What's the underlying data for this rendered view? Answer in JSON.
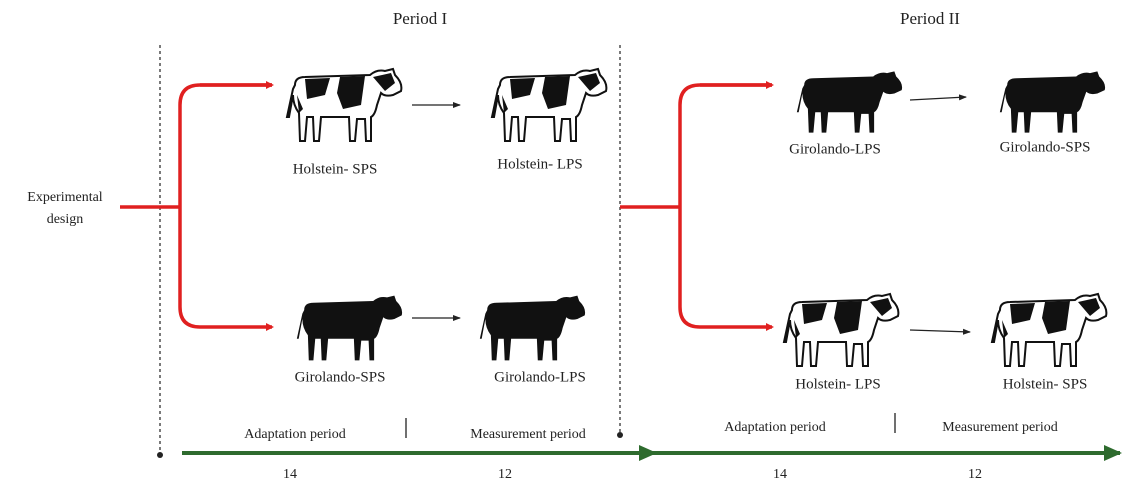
{
  "start": {
    "label": [
      "Experimental",
      "design"
    ]
  },
  "periods": [
    {
      "title": "Period I",
      "groups": [
        {
          "from": "Holstein- SPS",
          "to": "Holstein- LPS"
        },
        {
          "from": "Girolando-SPS",
          "to": "Girolando-LPS"
        }
      ],
      "phases": [
        {
          "label": "Adaptation period",
          "days": 14
        },
        {
          "label": "Measurement period",
          "days": 12
        }
      ]
    },
    {
      "title": "Period II",
      "groups": [
        {
          "from": "Girolando-LPS",
          "to": "Girolando-SPS"
        },
        {
          "from": "Holstein- LPS",
          "to": "Holstein- SPS"
        }
      ],
      "phases": [
        {
          "label": "Adaptation period",
          "days": 14
        },
        {
          "label": "Measurement period",
          "days": 12
        }
      ]
    }
  ]
}
